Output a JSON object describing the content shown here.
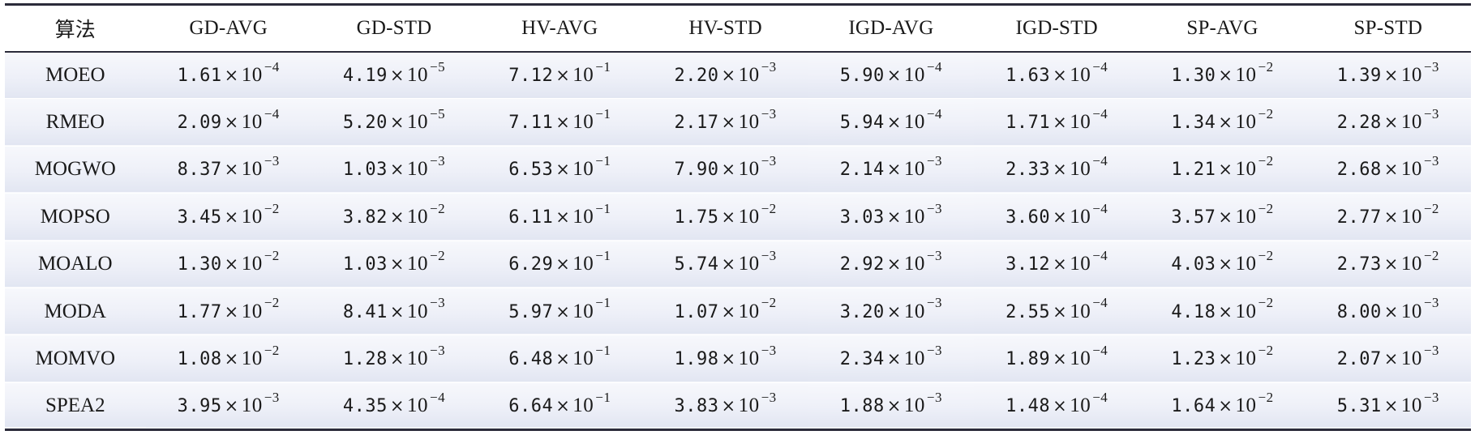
{
  "table": {
    "columns": [
      "算法",
      "GD-AVG",
      "GD-STD",
      "HV-AVG",
      "HV-STD",
      "IGD-AVG",
      "IGD-STD",
      "SP-AVG",
      "SP-STD"
    ],
    "rows": [
      {
        "algorithm": "MOEO",
        "cells": [
          {
            "m": "1.61",
            "e": "−4"
          },
          {
            "m": "4.19",
            "e": "−5"
          },
          {
            "m": "7.12",
            "e": "−1"
          },
          {
            "m": "2.20",
            "e": "−3"
          },
          {
            "m": "5.90",
            "e": "−4"
          },
          {
            "m": "1.63",
            "e": "−4"
          },
          {
            "m": "1.30",
            "e": "−2"
          },
          {
            "m": "1.39",
            "e": "−3"
          }
        ]
      },
      {
        "algorithm": "RMEO",
        "cells": [
          {
            "m": "2.09",
            "e": "−4"
          },
          {
            "m": "5.20",
            "e": "−5"
          },
          {
            "m": "7.11",
            "e": "−1"
          },
          {
            "m": "2.17",
            "e": "−3"
          },
          {
            "m": "5.94",
            "e": "−4"
          },
          {
            "m": "1.71",
            "e": "−4"
          },
          {
            "m": "1.34",
            "e": "−2"
          },
          {
            "m": "2.28",
            "e": "−3"
          }
        ]
      },
      {
        "algorithm": "MOGWO",
        "cells": [
          {
            "m": "8.37",
            "e": "−3"
          },
          {
            "m": "1.03",
            "e": "−3"
          },
          {
            "m": "6.53",
            "e": "−1"
          },
          {
            "m": "7.90",
            "e": "−3"
          },
          {
            "m": "2.14",
            "e": "−3"
          },
          {
            "m": "2.33",
            "e": "−4"
          },
          {
            "m": "1.21",
            "e": "−2"
          },
          {
            "m": "2.68",
            "e": "−3"
          }
        ]
      },
      {
        "algorithm": "MOPSO",
        "cells": [
          {
            "m": "3.45",
            "e": "−2"
          },
          {
            "m": "3.82",
            "e": "−2"
          },
          {
            "m": "6.11",
            "e": "−1"
          },
          {
            "m": "1.75",
            "e": "−2"
          },
          {
            "m": "3.03",
            "e": "−3"
          },
          {
            "m": "3.60",
            "e": "−4"
          },
          {
            "m": "3.57",
            "e": "−2"
          },
          {
            "m": "2.77",
            "e": "−2"
          }
        ]
      },
      {
        "algorithm": "MOALO",
        "cells": [
          {
            "m": "1.30",
            "e": "−2"
          },
          {
            "m": "1.03",
            "e": "−2"
          },
          {
            "m": "6.29",
            "e": "−1"
          },
          {
            "m": "5.74",
            "e": "−3"
          },
          {
            "m": "2.92",
            "e": "−3"
          },
          {
            "m": "3.12",
            "e": "−4"
          },
          {
            "m": "4.03",
            "e": "−2"
          },
          {
            "m": "2.73",
            "e": "−2"
          }
        ]
      },
      {
        "algorithm": "MODA",
        "cells": [
          {
            "m": "1.77",
            "e": "−2"
          },
          {
            "m": "8.41",
            "e": "−3"
          },
          {
            "m": "5.97",
            "e": "−1"
          },
          {
            "m": "1.07",
            "e": "−2"
          },
          {
            "m": "3.20",
            "e": "−3"
          },
          {
            "m": "2.55",
            "e": "−4"
          },
          {
            "m": "4.18",
            "e": "−2"
          },
          {
            "m": "8.00",
            "e": "−3"
          }
        ]
      },
      {
        "algorithm": "MOMVO",
        "cells": [
          {
            "m": "1.08",
            "e": "−2"
          },
          {
            "m": "1.28",
            "e": "−3"
          },
          {
            "m": "6.48",
            "e": "−1"
          },
          {
            "m": "1.98",
            "e": "−3"
          },
          {
            "m": "2.34",
            "e": "−3"
          },
          {
            "m": "1.89",
            "e": "−4"
          },
          {
            "m": "1.23",
            "e": "−2"
          },
          {
            "m": "2.07",
            "e": "−3"
          }
        ]
      },
      {
        "algorithm": "SPEA2",
        "cells": [
          {
            "m": "3.95",
            "e": "−3"
          },
          {
            "m": "4.35",
            "e": "−4"
          },
          {
            "m": "6.64",
            "e": "−1"
          },
          {
            "m": "3.83",
            "e": "−3"
          },
          {
            "m": "1.88",
            "e": "−3"
          },
          {
            "m": "1.48",
            "e": "−4"
          },
          {
            "m": "1.64",
            "e": "−2"
          },
          {
            "m": "5.31",
            "e": "−3"
          }
        ]
      }
    ],
    "times_symbol": "×",
    "base": "10"
  }
}
